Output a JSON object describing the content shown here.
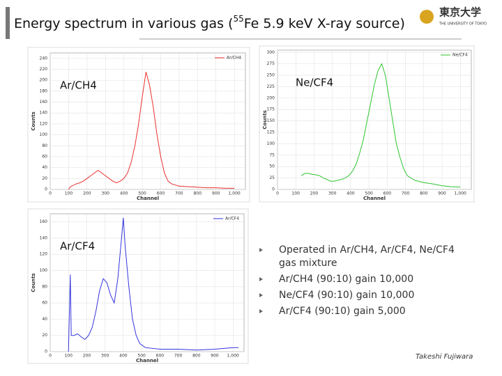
{
  "header": {
    "title_start": "Energy spectrum in various gas  (",
    "title_sup": "55",
    "title_end": "Fe 5.9 keV X-ray source)",
    "logo_name": "東京大学",
    "logo_sub": "THE UNIVERSITY OF TOKYO"
  },
  "chart_data": [
    {
      "type": "line",
      "annotation": "Ar/CH4",
      "xlabel": "Channel",
      "ylabel": "Counts",
      "legend": "top-right",
      "grid": true,
      "xlim": [
        0,
        1060
      ],
      "xticks": [
        0,
        100,
        200,
        300,
        400,
        500,
        600,
        700,
        800,
        900,
        {
          "value": 1000,
          "label": "1,000"
        }
      ],
      "ylim": [
        0,
        250
      ],
      "yticks": [
        0,
        20,
        40,
        60,
        80,
        100,
        120,
        140,
        160,
        180,
        200,
        220,
        240
      ],
      "x": [
        100,
        110,
        140,
        160,
        180,
        200,
        220,
        240,
        260,
        280,
        300,
        320,
        340,
        360,
        380,
        400,
        420,
        440,
        460,
        480,
        500,
        520,
        540,
        560,
        580,
        600,
        620,
        640,
        660,
        680,
        700,
        750,
        800,
        850,
        900,
        950,
        1000
      ],
      "series": [
        {
          "name": "Ar/CH4",
          "color": "#e8302c",
          "values": [
            0,
            5,
            10,
            12,
            15,
            20,
            25,
            30,
            35,
            30,
            25,
            20,
            15,
            12,
            15,
            20,
            30,
            50,
            80,
            120,
            170,
            215,
            190,
            150,
            100,
            60,
            30,
            15,
            10,
            8,
            6,
            5,
            4,
            3,
            3,
            2,
            2
          ]
        }
      ]
    },
    {
      "type": "line",
      "annotation": "Ne/CF4",
      "xlabel": "Channel",
      "ylabel": "Counts",
      "legend": "top-right",
      "grid": true,
      "xlim": [
        0,
        1060
      ],
      "xticks": [
        0,
        100,
        200,
        300,
        400,
        500,
        600,
        700,
        800,
        900,
        {
          "value": 1000,
          "label": "1,000"
        }
      ],
      "ylim": [
        0,
        305
      ],
      "yticks": [
        0,
        25,
        50,
        75,
        100,
        125,
        150,
        175,
        200,
        225,
        250,
        275,
        300
      ],
      "x": [
        130,
        150,
        170,
        190,
        210,
        230,
        250,
        270,
        290,
        310,
        330,
        350,
        370,
        390,
        410,
        430,
        450,
        470,
        490,
        510,
        530,
        550,
        570,
        590,
        610,
        630,
        650,
        670,
        690,
        710,
        750,
        800,
        850,
        900,
        950,
        1000
      ],
      "series": [
        {
          "name": "Ne/CF4",
          "color": "#2ec42e",
          "values": [
            30,
            35,
            35,
            33,
            32,
            30,
            25,
            22,
            18,
            18,
            20,
            22,
            25,
            30,
            40,
            55,
            80,
            110,
            150,
            190,
            230,
            260,
            275,
            250,
            200,
            150,
            100,
            70,
            45,
            30,
            20,
            15,
            12,
            8,
            6,
            5
          ]
        }
      ]
    },
    {
      "type": "line",
      "annotation": "Ar/CF4",
      "xlabel": "Channel",
      "ylabel": "Counts",
      "legend": "top-right",
      "grid": true,
      "xlim": [
        0,
        1060
      ],
      "xticks": [
        0,
        100,
        200,
        300,
        400,
        500,
        600,
        700,
        800,
        900,
        {
          "value": 1000,
          "label": "1,000"
        }
      ],
      "ylim": [
        0,
        170
      ],
      "yticks": [
        0,
        20,
        40,
        60,
        80,
        100,
        120,
        140,
        160
      ],
      "x": [
        100,
        110,
        115,
        130,
        150,
        170,
        190,
        210,
        230,
        250,
        270,
        290,
        310,
        330,
        350,
        370,
        390,
        400,
        410,
        430,
        450,
        470,
        490,
        520,
        600,
        700,
        800,
        900,
        1000,
        1030
      ],
      "series": [
        {
          "name": "Ar/CF4",
          "color": "#3333dd",
          "values": [
            0,
            95,
            20,
            20,
            22,
            18,
            15,
            20,
            30,
            50,
            75,
            90,
            85,
            70,
            60,
            90,
            140,
            165,
            130,
            80,
            40,
            20,
            10,
            5,
            3,
            3,
            2,
            3,
            5,
            5
          ]
        }
      ]
    }
  ],
  "bullets": [
    "Operated in Ar/CH4, Ar/CF4, Ne/CF4 gas mixture",
    "Ar/CH4 (90:10) gain 10,000",
    "Ne/CF4 (90:10) gain 10,000",
    "Ar/CF4 (90:10) gain 5,000"
  ],
  "author": "Takeshi Fujiwara"
}
